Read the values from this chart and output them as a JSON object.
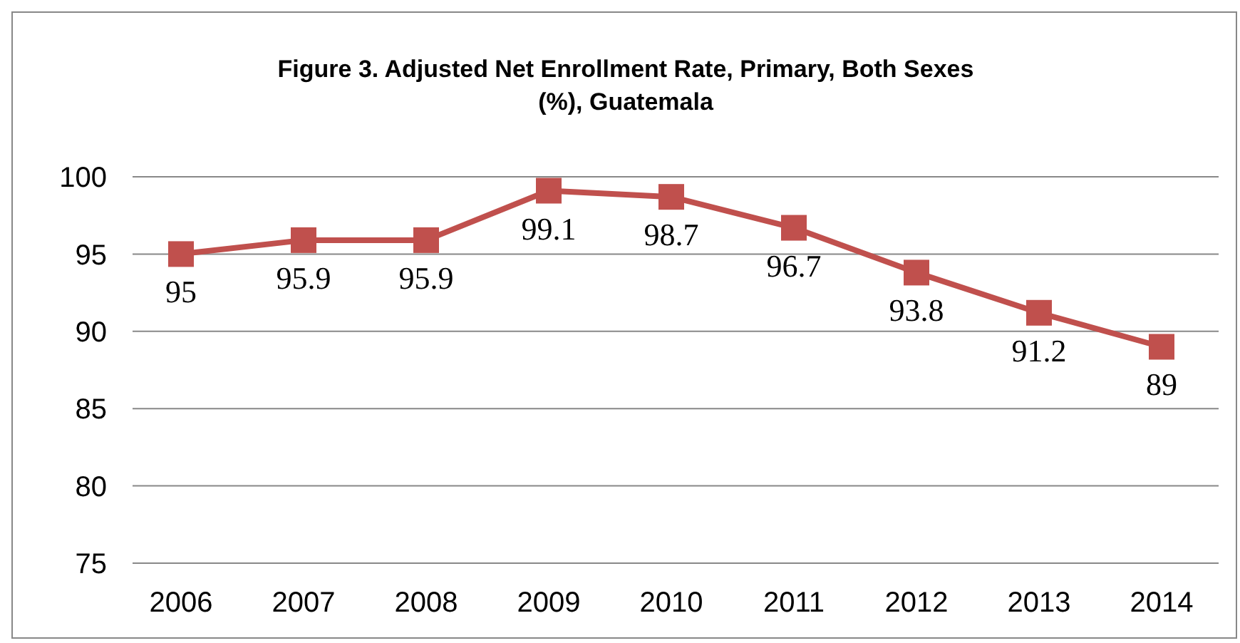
{
  "chart_data": {
    "type": "line",
    "title": "Figure 3. Adjusted Net Enrollment Rate, Primary, Both Sexes (%), Guatemala",
    "categories": [
      "2006",
      "2007",
      "2008",
      "2009",
      "2010",
      "2011",
      "2012",
      "2013",
      "2014"
    ],
    "series": [
      {
        "color": "#c0504d",
        "values": [
          95,
          95.9,
          95.9,
          99.1,
          98.7,
          96.7,
          93.8,
          91.2,
          89
        ]
      }
    ],
    "ylim": [
      75,
      100
    ],
    "yticks": [
      75,
      80,
      85,
      90,
      95,
      100
    ],
    "grid": "y",
    "marker": "square",
    "line_style": "solid",
    "data_labels": true,
    "legend": false
  }
}
